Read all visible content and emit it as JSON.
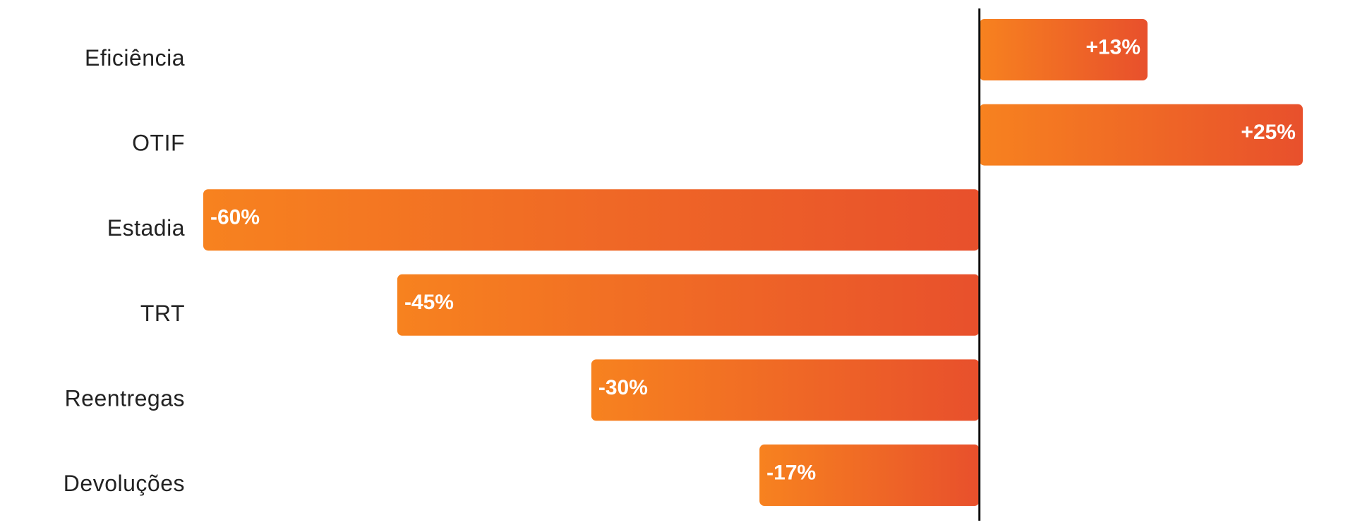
{
  "chart_data": {
    "type": "bar",
    "orientation": "horizontal",
    "categories": [
      "Eficiência",
      "OTIF",
      "Estadia",
      "TRT",
      "Reentregas",
      "Devoluções"
    ],
    "values": [
      13,
      25,
      -60,
      -45,
      -30,
      -17
    ],
    "value_labels": [
      "+13%",
      "+25%",
      "-60%",
      "-45%",
      "-30%",
      "-17%"
    ],
    "color": [
      "#f7821f",
      "#e8502c"
    ]
  }
}
